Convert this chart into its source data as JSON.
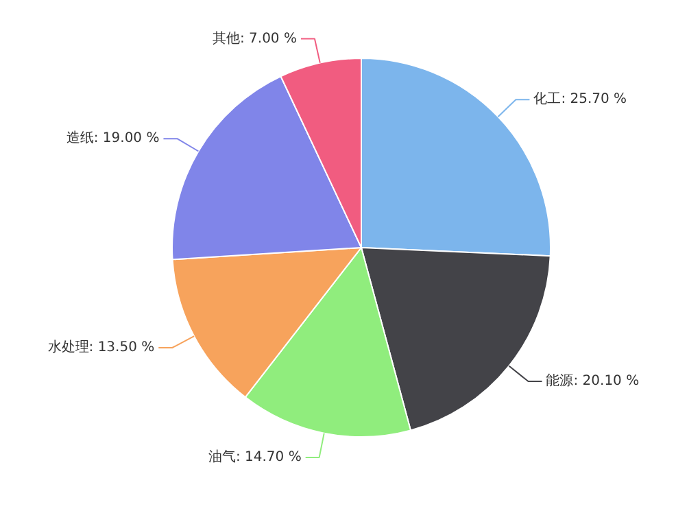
{
  "chart_data": {
    "type": "pie",
    "categories": [
      "化工",
      "能源",
      "油气",
      "水处理",
      "造纸",
      "其他"
    ],
    "values": [
      25.7,
      20.1,
      14.7,
      13.5,
      19.0,
      7.0
    ],
    "value_labels": [
      "25.70 %",
      "20.10 %",
      "14.70 %",
      "13.50 %",
      "19.00 %",
      "7.00 %"
    ],
    "colors": [
      "#7cb5ec",
      "#434348",
      "#90ed7d",
      "#f7a35c",
      "#8085e9",
      "#f15c80"
    ],
    "legend": false
  }
}
